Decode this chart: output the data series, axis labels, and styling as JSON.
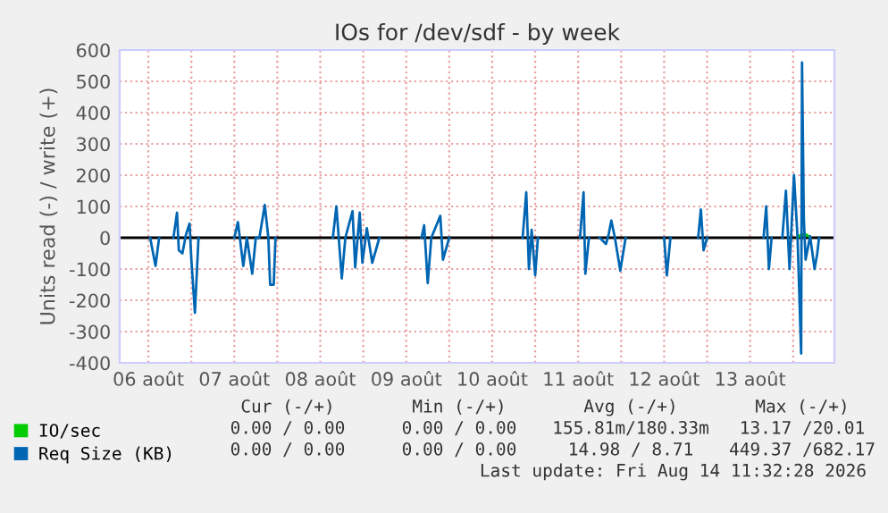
{
  "chart_data": {
    "type": "line",
    "title": "IOs for /dev/sdf - by week",
    "ylabel": "Units read (-) / write (+)",
    "xlim": [
      "2026-08-06T04:00",
      "2026-08-14T11:32"
    ],
    "ylim": [
      -400,
      600
    ],
    "yticks": [
      -400,
      -300,
      -200,
      -100,
      0,
      100,
      200,
      300,
      400,
      500,
      600
    ],
    "xticks": [
      {
        "value": "2026-08-06T12:00",
        "label": "06 août"
      },
      {
        "value": "2026-08-07",
        "label": null
      },
      {
        "value": "2026-08-07T12:00",
        "label": "07 août"
      },
      {
        "value": "2026-08-08",
        "label": null
      },
      {
        "value": "2026-08-08T12:00",
        "label": "08 août"
      },
      {
        "value": "2026-08-09",
        "label": null
      },
      {
        "value": "2026-08-09T12:00",
        "label": "09 août"
      },
      {
        "value": "2026-08-10",
        "label": null
      },
      {
        "value": "2026-08-10T12:00",
        "label": "10 août"
      },
      {
        "value": "2026-08-11",
        "label": null
      },
      {
        "value": "2026-08-11T12:00",
        "label": "11 août"
      },
      {
        "value": "2026-08-12",
        "label": null
      },
      {
        "value": "2026-08-12T12:00",
        "label": "12 août"
      },
      {
        "value": "2026-08-13",
        "label": null
      },
      {
        "value": "2026-08-13T12:00",
        "label": "13 août"
      },
      {
        "value": "2026-08-14",
        "label": null
      }
    ],
    "grid": true,
    "legend": "bottom left",
    "ref_lines": [
      {
        "axis": "y",
        "value": 0,
        "color": "#000000"
      }
    ],
    "series": [
      {
        "name": "IO/sec",
        "color": "#00cc00",
        "x": [
          "2026-08-14T01:15",
          "2026-08-14T02:00",
          "2026-08-14T02:30",
          "2026-08-14T03:15",
          "2026-08-14T03:45",
          "2026-08-14T04:45"
        ],
        "values": [
          0,
          8,
          12,
          5,
          10,
          0
        ]
      },
      {
        "name": "Req Size (KB)",
        "color": "#0066b3",
        "x": [
          "2026-08-06T12:30",
          "2026-08-06T14:00",
          "2026-08-06T15:00",
          "2026-08-06T17:00",
          "2026-08-06T19:00",
          "2026-08-06T20:00",
          "2026-08-06T20:30",
          "2026-08-06T21:30",
          "2026-08-06T22:30",
          "2026-08-06T23:30",
          "2026-08-07T00:00",
          "2026-08-07T01:00",
          "2026-08-07T02:00",
          "2026-08-07T05:00",
          "2026-08-07T12:00",
          "2026-08-07T13:00",
          "2026-08-07T14:30",
          "2026-08-07T15:30",
          "2026-08-07T17:00",
          "2026-08-07T18:00",
          "2026-08-07T19:00",
          "2026-08-07T20:30",
          "2026-08-07T21:30",
          "2026-08-07T22:00",
          "2026-08-07T23:00",
          "2026-08-07T23:30",
          "2026-08-08T05:00",
          "2026-08-08T15:30",
          "2026-08-08T16:30",
          "2026-08-08T18:00",
          "2026-08-08T19:00",
          "2026-08-08T21:00",
          "2026-08-08T21:45",
          "2026-08-08T23:00",
          "2026-08-08T23:45",
          "2026-08-09T01:00",
          "2026-08-09T02:30",
          "2026-08-09T04:30",
          "2026-08-09T09:30",
          "2026-08-09T16:15",
          "2026-08-09T17:00",
          "2026-08-09T18:00",
          "2026-08-09T19:00",
          "2026-08-09T21:30",
          "2026-08-09T22:15",
          "2026-08-10T00:00",
          "2026-08-10T07:00",
          "2026-08-10T20:30",
          "2026-08-10T21:30",
          "2026-08-10T22:15",
          "2026-08-10T23:00",
          "2026-08-11T00:00",
          "2026-08-11T00:45",
          "2026-08-11T05:00",
          "2026-08-11T12:30",
          "2026-08-11T13:30",
          "2026-08-11T14:00",
          "2026-08-11T15:00",
          "2026-08-11T16:45",
          "2026-08-11T18:00",
          "2026-08-11T19:45",
          "2026-08-11T20:30",
          "2026-08-11T21:15",
          "2026-08-11T22:15",
          "2026-08-11T23:45",
          "2026-08-12T01:15",
          "2026-08-12T07:15",
          "2026-08-12T12:00",
          "2026-08-12T12:45",
          "2026-08-12T13:45",
          "2026-08-12T16:45",
          "2026-08-12T21:30",
          "2026-08-12T22:15",
          "2026-08-12T23:00",
          "2026-08-13T00:00",
          "2026-08-13T07:15",
          "2026-08-13T15:45",
          "2026-08-13T16:30",
          "2026-08-13T17:15",
          "2026-08-13T18:00",
          "2026-08-13T19:15",
          "2026-08-13T21:00",
          "2026-08-13T22:00",
          "2026-08-13T23:00",
          "2026-08-14T00:15",
          "2026-08-14T01:15",
          "2026-08-14T02:15",
          "2026-08-14T02:30",
          "2026-08-14T03:00",
          "2026-08-14T03:30",
          "2026-08-14T04:45",
          "2026-08-14T06:00",
          "2026-08-14T06:45",
          "2026-08-14T07:15"
        ],
        "values": [
          0,
          -90,
          0,
          null,
          0,
          80,
          -40,
          -50,
          10,
          45,
          -70,
          -240,
          0,
          null,
          0,
          50,
          -90,
          0,
          -115,
          0,
          0,
          105,
          0,
          -150,
          -150,
          0,
          null,
          0,
          100,
          -130,
          0,
          85,
          -95,
          80,
          -80,
          30,
          -80,
          0,
          null,
          0,
          40,
          -145,
          0,
          70,
          -70,
          0,
          null,
          0,
          145,
          -100,
          25,
          -120,
          0,
          null,
          0,
          145,
          -115,
          0,
          null,
          0,
          -20,
          10,
          55,
          0,
          -105,
          0,
          null,
          0,
          -120,
          0,
          null,
          0,
          90,
          -40,
          0,
          null,
          0,
          100,
          -100,
          0,
          null,
          0,
          150,
          -100,
          200,
          0,
          -370,
          560,
          60,
          -70,
          5,
          -100,
          -50,
          0
        ]
      }
    ],
    "annotations": [
      "Cur (-/+)",
      "Min (-/+)",
      "Avg (-/+)",
      "Max (-/+)",
      "0.00 / 0.00",
      "0.00 / 0.00",
      "155.81m/180.33m",
      "13.17 /20.01",
      "0.00 / 0.00",
      "0.00 / 0.00",
      "14.98 / 8.71",
      "449.37 /682.17",
      "Last update: Fri Aug 14 11:32:28 2026"
    ]
  }
}
